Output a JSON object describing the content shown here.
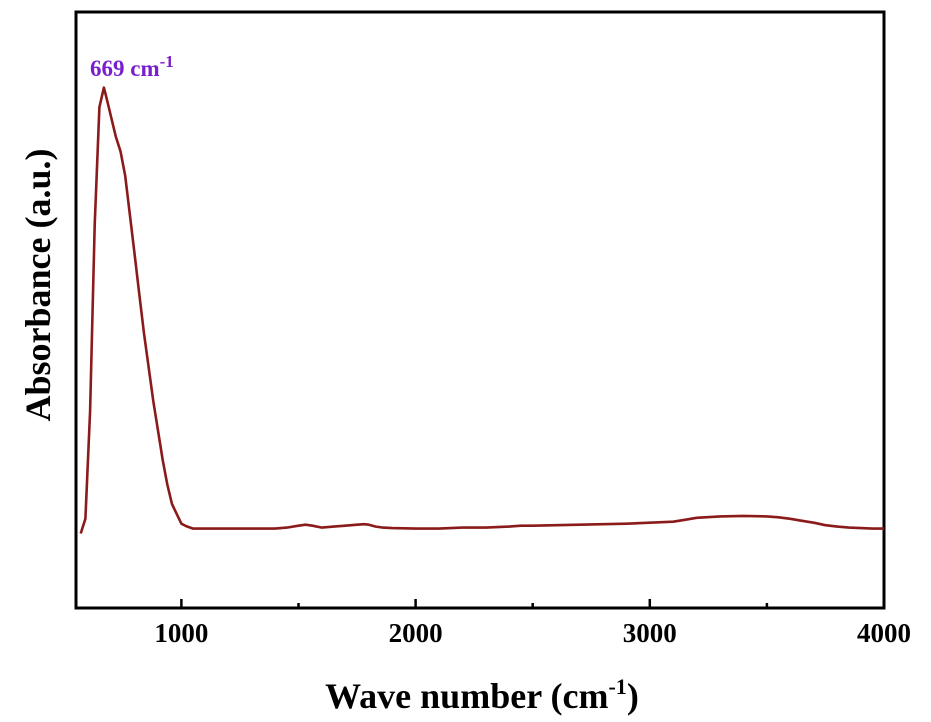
{
  "chart_data": {
    "type": "line",
    "xlabel": "Wave number (cm",
    "xlabel_sup": "-1",
    "xlabel_close": ")",
    "ylabel": "Absorbance (a.u.)",
    "xlim": [
      550,
      4000
    ],
    "ylim": [
      0,
      1.0
    ],
    "xticks": [
      1000,
      2000,
      3000,
      4000
    ],
    "xtick_labels": [
      "1000",
      "2000",
      "3000",
      "4000"
    ],
    "x_minor_ticks": [
      1500,
      2500,
      3500
    ],
    "grid": false,
    "line_color": "#8b1a1a",
    "annotation": {
      "text": "669 cm",
      "sup": "-1",
      "color": "#7a1fcf",
      "x": 669,
      "y": 0.96
    },
    "series": [
      {
        "x": [
          570,
          590,
          610,
          630,
          650,
          669,
          680,
          700,
          720,
          740,
          760,
          780,
          800,
          820,
          840,
          860,
          880,
          900,
          920,
          940,
          960,
          980,
          1000,
          1020,
          1050,
          1080,
          1100,
          1200,
          1300,
          1400,
          1450,
          1500,
          1530,
          1560,
          1600,
          1650,
          1700,
          1750,
          1780,
          1800,
          1830,
          1860,
          1900,
          2000,
          2100,
          2150,
          2200,
          2300,
          2400,
          2450,
          2500,
          2600,
          2700,
          2800,
          2900,
          3000,
          3100,
          3150,
          3200,
          3300,
          3400,
          3500,
          3550,
          3600,
          3650,
          3700,
          3750,
          3800,
          3850,
          3900,
          3950,
          4000
        ],
        "y": [
          0.05,
          0.08,
          0.3,
          0.68,
          0.92,
          0.96,
          0.94,
          0.9,
          0.86,
          0.83,
          0.78,
          0.7,
          0.62,
          0.54,
          0.46,
          0.39,
          0.32,
          0.26,
          0.2,
          0.15,
          0.11,
          0.09,
          0.07,
          0.065,
          0.06,
          0.06,
          0.06,
          0.06,
          0.06,
          0.06,
          0.062,
          0.066,
          0.068,
          0.066,
          0.062,
          0.064,
          0.066,
          0.068,
          0.069,
          0.068,
          0.064,
          0.062,
          0.061,
          0.06,
          0.06,
          0.061,
          0.062,
          0.062,
          0.064,
          0.066,
          0.066,
          0.067,
          0.068,
          0.069,
          0.07,
          0.072,
          0.074,
          0.078,
          0.082,
          0.085,
          0.086,
          0.085,
          0.083,
          0.08,
          0.076,
          0.072,
          0.067,
          0.064,
          0.062,
          0.061,
          0.06,
          0.06
        ]
      }
    ]
  }
}
